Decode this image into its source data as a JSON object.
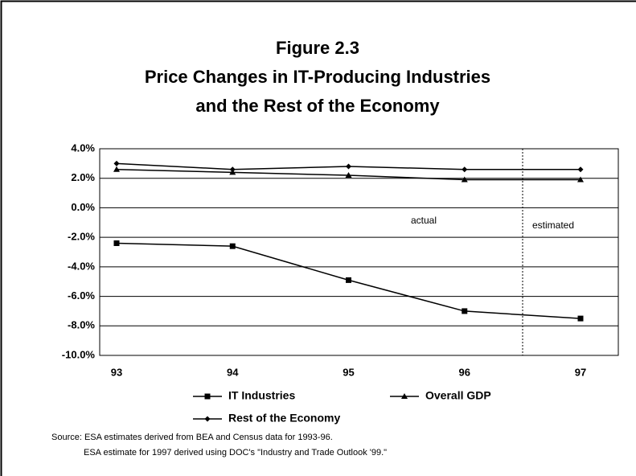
{
  "chart_data": {
    "type": "line",
    "title": [
      "Figure 2.3",
      "Price Changes in IT-Producing Industries",
      "and the Rest of the Economy"
    ],
    "categories": [
      "93",
      "94",
      "95",
      "96",
      "97"
    ],
    "series": [
      {
        "name": "IT Industries",
        "color": "#000000",
        "marker": "square",
        "values": [
          -2.4,
          -2.6,
          -4.9,
          -7.0,
          -7.5
        ]
      },
      {
        "name": "Overall GDP",
        "color": "#000000",
        "marker": "triangle",
        "values": [
          2.6,
          2.4,
          2.2,
          1.9,
          1.9
        ]
      },
      {
        "name": "Rest of the Economy",
        "color": "#000000",
        "marker": "diamond",
        "values": [
          3.0,
          2.6,
          2.8,
          2.6,
          2.6
        ]
      }
    ],
    "ylim": [
      -10,
      4
    ],
    "yticks": [
      {
        "value": 4,
        "label": "4.0%"
      },
      {
        "value": 2,
        "label": "2.0%"
      },
      {
        "value": 0,
        "label": "0.0%"
      },
      {
        "value": -2,
        "label": "-2.0%"
      },
      {
        "value": -4,
        "label": "-4.0%"
      },
      {
        "value": -6,
        "label": "-6.0%"
      },
      {
        "value": -8,
        "label": "-8.0%"
      },
      {
        "value": -10,
        "label": "-10.0%"
      }
    ],
    "grid": true,
    "annotations": [
      "actual",
      "estimated"
    ],
    "source": [
      "Source: ESA estimates derived from BEA  and Census data for 1993-96.",
      "ESA estimate for 1997 derived using DOC's \"Industry and Trade Outlook '99.\""
    ]
  }
}
